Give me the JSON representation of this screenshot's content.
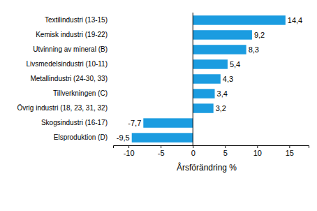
{
  "chart_data": {
    "type": "bar",
    "orientation": "horizontal",
    "categories": [
      "Textilindustri (13-15)",
      "Kemisk industri (19-22)",
      "Utvinning av mineral (B)",
      "Livsmedelsindustri (10-11)",
      "Metallindustri (24-30, 33)",
      "Tillverkningen (C)",
      "Övrig industri (18, 23, 31, 32)",
      "Skogsindustri (16-17)",
      "Elsproduktion (D)"
    ],
    "values": [
      14.4,
      9.2,
      8.3,
      5.4,
      4.3,
      3.4,
      3.2,
      -7.7,
      -9.5
    ],
    "value_labels": [
      "14,4",
      "9,2",
      "8,3",
      "5,4",
      "4,3",
      "3,4",
      "3,2",
      "-7,7",
      "-9,5"
    ],
    "data_labels": true,
    "color": "#1b9ce0",
    "x_label": "Årsförändring %",
    "xlim": [
      -12.4,
      18
    ],
    "xticks": [
      -10,
      -5,
      0,
      5,
      10,
      15
    ],
    "grid": false
  }
}
